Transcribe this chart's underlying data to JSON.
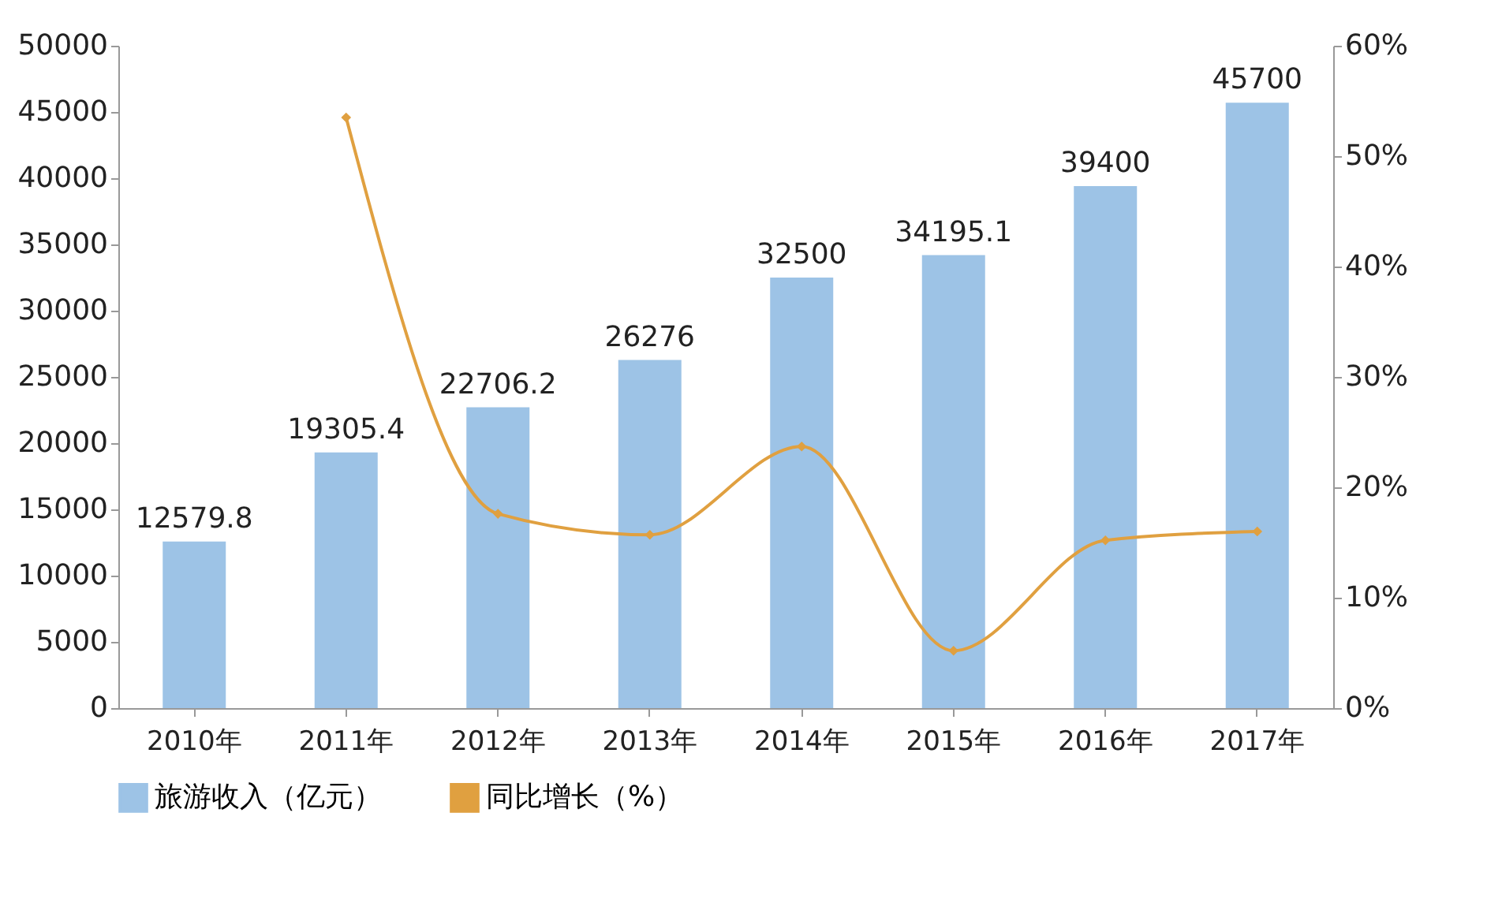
{
  "chart_data": {
    "type": "bar",
    "categories": [
      "2010年",
      "2011年",
      "2012年",
      "2013年",
      "2014年",
      "2015年",
      "2016年",
      "2017年"
    ],
    "series": [
      {
        "name": "旅游收入（亿元）",
        "color": "#9dc3e6",
        "values": [
          12579.8,
          19305.4,
          22706.2,
          26276,
          32500,
          34195.1,
          39400,
          45700
        ],
        "value_labels": [
          "12579.8",
          "19305.4",
          "22706.2",
          "26276",
          "32500",
          "34195.1",
          "39400",
          "45700"
        ]
      },
      {
        "name": "同比增长（%）",
        "type": "line",
        "axis": "y2",
        "color": "#e0a040",
        "values": [
          null,
          53.5,
          17.6,
          15.7,
          23.7,
          5.2,
          15.2,
          16.0
        ]
      }
    ],
    "ylim": [
      0,
      50000
    ],
    "yticks": [
      0,
      5000,
      10000,
      15000,
      20000,
      25000,
      30000,
      35000,
      40000,
      45000,
      50000
    ],
    "y2lim": [
      0,
      60
    ],
    "y2ticks": [
      {
        "value": 0,
        "label": "0%"
      },
      {
        "value": 10,
        "label": "10%"
      },
      {
        "value": 20,
        "label": "20%"
      },
      {
        "value": 30,
        "label": "30%"
      },
      {
        "value": 40,
        "label": "40%"
      },
      {
        "value": 50,
        "label": "50%"
      },
      {
        "value": 60,
        "label": "60%"
      }
    ],
    "grid": false,
    "legend": "bottom",
    "marker": "diamond",
    "line_style": "solid"
  }
}
